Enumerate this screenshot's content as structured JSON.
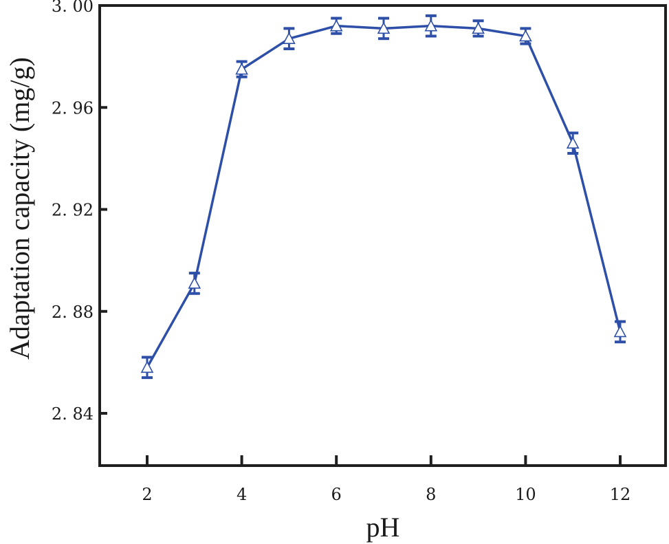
{
  "colors": {
    "series": "#2e4fa8",
    "axis": "#1f1f1f",
    "marker_fill": "#ffffff",
    "background": "#ffffff"
  },
  "chart_data": {
    "type": "line",
    "title": "",
    "xlabel": "pH",
    "ylabel": "Adaptation capacity (mg/g)",
    "x": [
      2,
      3,
      4,
      5,
      6,
      7,
      8,
      9,
      10,
      11,
      12
    ],
    "series": [
      {
        "name": "Adaptation capacity",
        "marker": "open-triangle",
        "values": [
          2.858,
          2.891,
          2.975,
          2.987,
          2.992,
          2.991,
          2.992,
          2.991,
          2.988,
          2.946,
          2.872
        ],
        "error": [
          0.004,
          0.004,
          0.003,
          0.004,
          0.003,
          0.004,
          0.004,
          0.003,
          0.003,
          0.004,
          0.004
        ]
      }
    ],
    "xlim": [
      1,
      13.1
    ],
    "ylim": [
      2.82,
      3.0
    ],
    "xticks": [
      2,
      4,
      6,
      8,
      10,
      12
    ],
    "xtick_labels": [
      "2",
      "4",
      "6",
      "8",
      "10",
      "12"
    ],
    "yticks": [
      2.84,
      2.88,
      2.92,
      2.96,
      3.0
    ],
    "ytick_labels": [
      "2. 84",
      "2. 88",
      "2. 92",
      "2. 96",
      "3. 00"
    ],
    "grid": false,
    "legend": "none"
  }
}
